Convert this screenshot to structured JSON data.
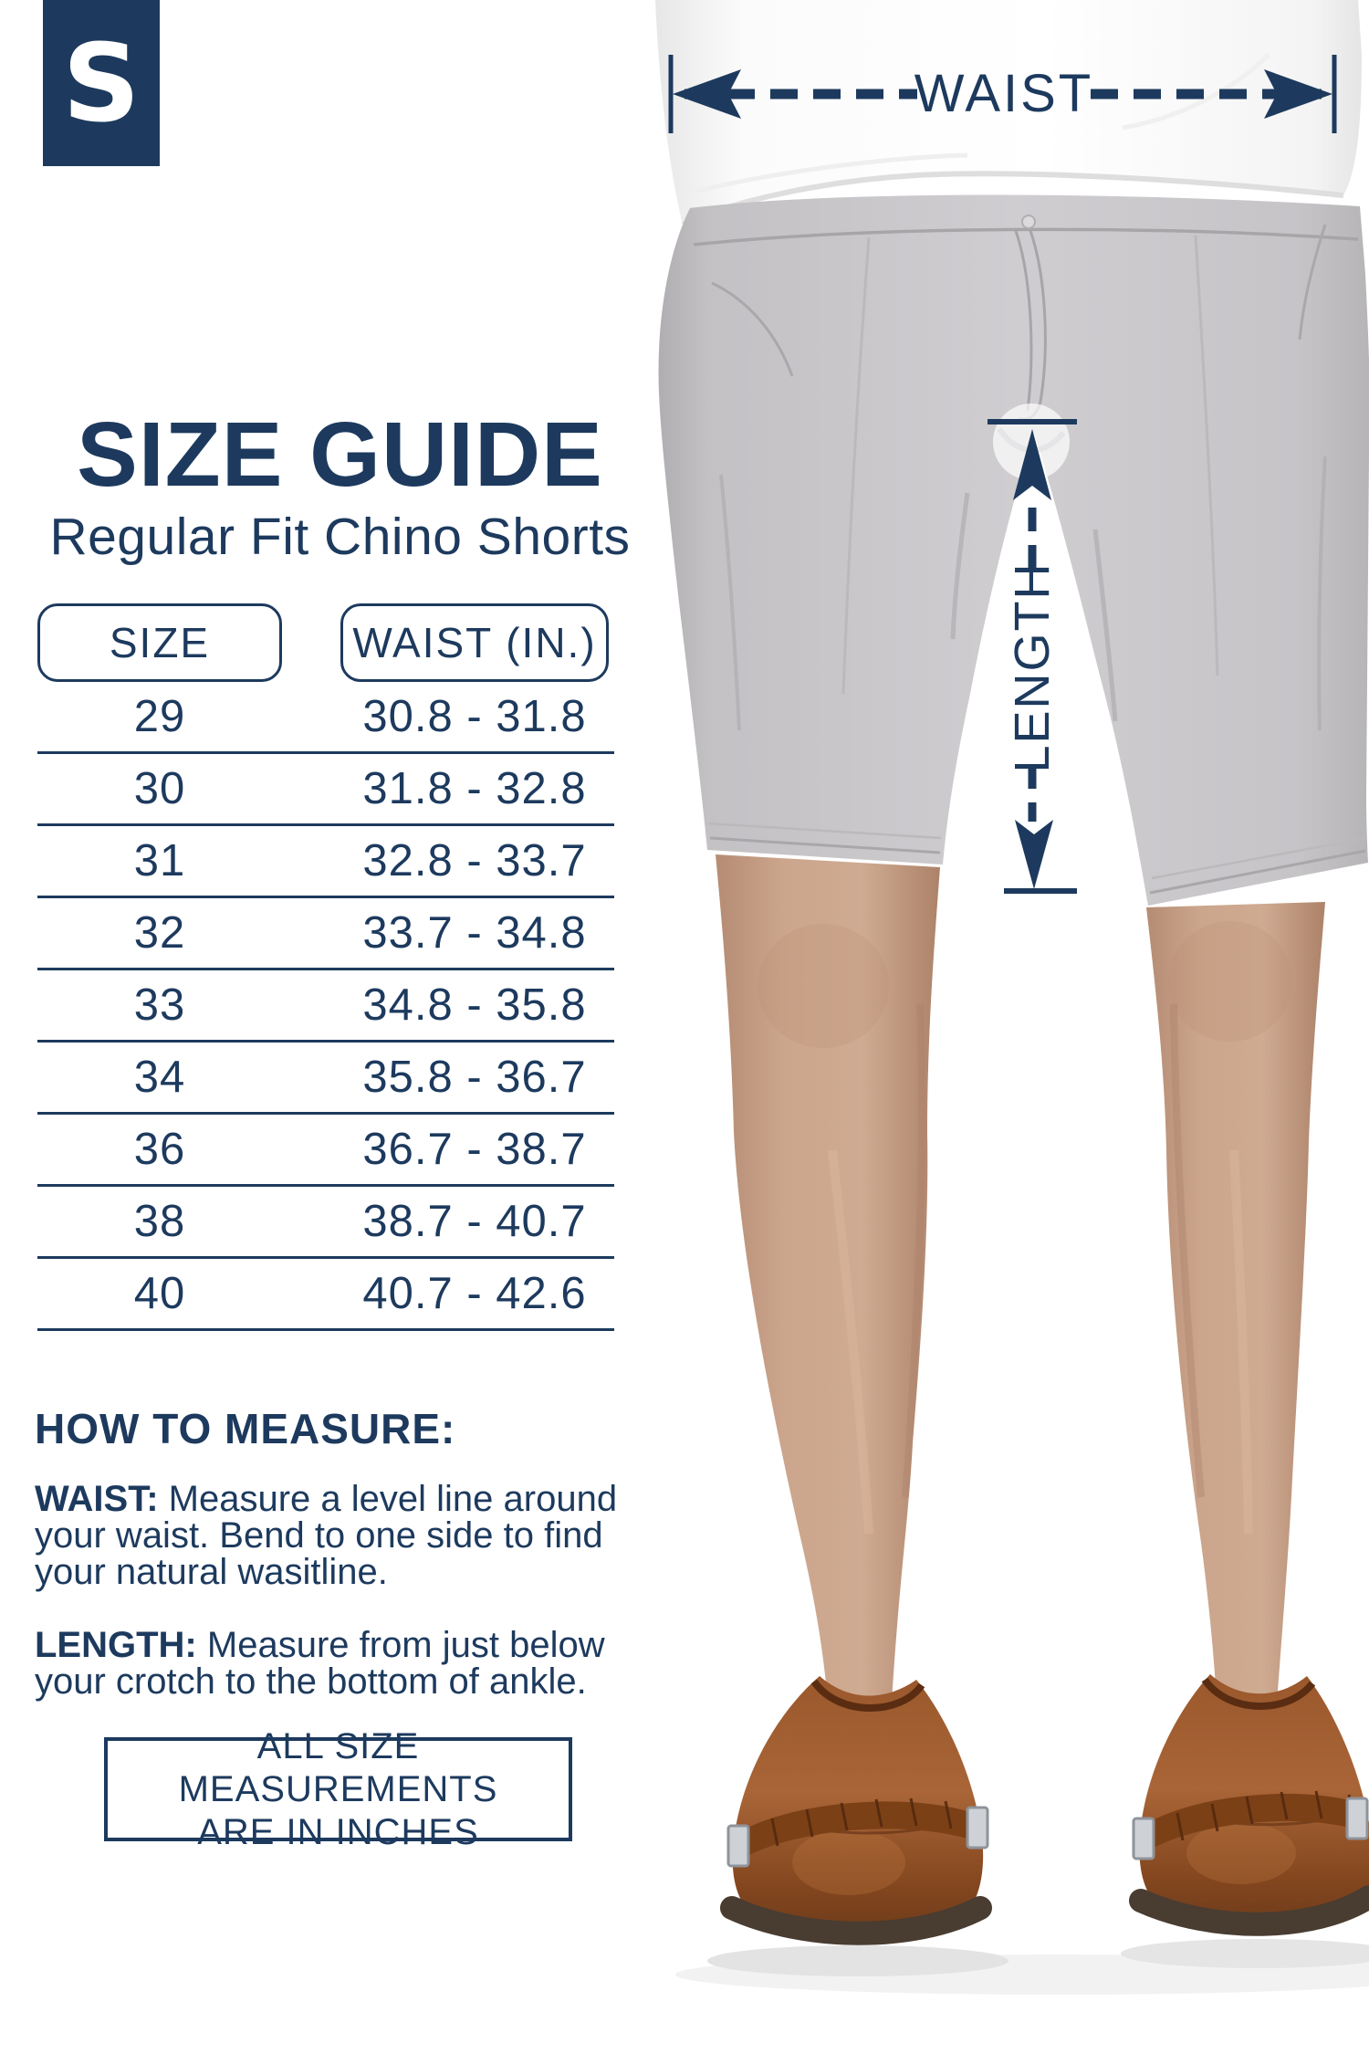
{
  "brand": {
    "logo_letter": "S"
  },
  "header": {
    "title": "SIZE GUIDE",
    "subtitle": "Regular Fit Chino Shorts"
  },
  "size_table": {
    "columns": [
      "SIZE",
      "WAIST (IN.)"
    ],
    "rows": [
      {
        "size": "29",
        "waist": "30.8 - 31.8"
      },
      {
        "size": "30",
        "waist": "31.8 - 32.8"
      },
      {
        "size": "31",
        "waist": "32.8 - 33.7"
      },
      {
        "size": "32",
        "waist": "33.7 - 34.8"
      },
      {
        "size": "33",
        "waist": "34.8 - 35.8"
      },
      {
        "size": "34",
        "waist": "35.8 - 36.7"
      },
      {
        "size": "36",
        "waist": "36.7 - 38.7"
      },
      {
        "size": "38",
        "waist": "38.7 - 40.7"
      },
      {
        "size": "40",
        "waist": "40.7 - 42.6"
      }
    ]
  },
  "how_to_measure": {
    "heading": "HOW TO MEASURE:",
    "items": [
      {
        "label": "WAIST:",
        "text": "Measure a level line around your waist. Bend to one side to find your natural wasitline."
      },
      {
        "label": "LENGTH:",
        "text": "Measure from just below your crotch to the bottom of ankle."
      }
    ]
  },
  "note_box": {
    "line1": "ALL SIZE MEASUREMENTS",
    "line2": "ARE IN INCHES"
  },
  "annotations": {
    "waist_label": "WAIST",
    "length_label": "LENGTH"
  },
  "colors": {
    "navy": "#1d3a5e",
    "shorts_gray": "#c8c6c9",
    "skin": "#c49a82",
    "shoe_brown": "#94552b",
    "sole_brown": "#493c30"
  }
}
